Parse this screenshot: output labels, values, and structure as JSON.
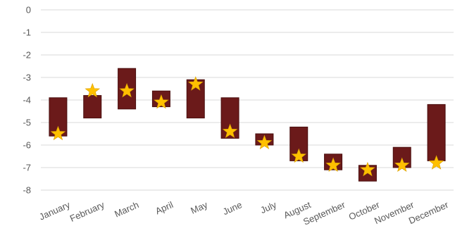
{
  "chart_data": {
    "type": "bar",
    "subtype": "floating-range-with-star-markers",
    "title": "",
    "xlabel": "",
    "ylabel": "",
    "ylim": [
      -8,
      0
    ],
    "yticks": [
      0,
      -1,
      -2,
      -3,
      -4,
      -5,
      -6,
      -7,
      -8
    ],
    "grid": true,
    "legend": "none",
    "categories": [
      "January",
      "February",
      "March",
      "April",
      "May",
      "June",
      "July",
      "August",
      "September",
      "October",
      "November",
      "December"
    ],
    "series": [
      {
        "role": "range",
        "low": [
          -5.6,
          -4.8,
          -4.4,
          -4.3,
          -4.8,
          -5.7,
          -6.0,
          -6.7,
          -7.1,
          -7.6,
          -7.0,
          -6.7
        ],
        "high": [
          -3.9,
          -3.8,
          -2.6,
          -3.6,
          -3.1,
          -3.9,
          -5.5,
          -5.2,
          -6.4,
          -6.9,
          -6.1,
          -4.2
        ]
      },
      {
        "role": "marker",
        "values": [
          -5.5,
          -3.6,
          -3.6,
          -4.1,
          -3.3,
          -5.4,
          -5.9,
          -6.5,
          -6.9,
          -7.1,
          -6.9,
          -6.8
        ]
      }
    ],
    "colors": {
      "bar": "#6b1a1a",
      "bar_edge": "#4a0f0f",
      "star": "#ffc000",
      "grid": "#d9d9d9",
      "tick": "#595959"
    }
  }
}
